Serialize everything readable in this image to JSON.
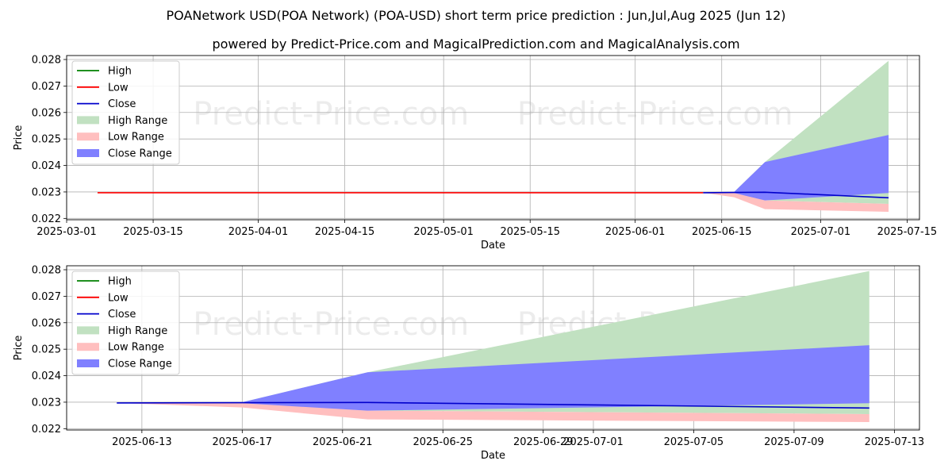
{
  "title": "POANetwork USD(POA Network) (POA-USD) short term price prediction : Jun,Jul,Aug 2025 (Jun 12)",
  "subtitle": "powered by Predict-Price.com and MagicalPrediction.com and MagicalAnalysis.com",
  "watermark": "Predict-Price.com",
  "colors": {
    "high": "#008000",
    "low": "#ff0000",
    "close": "#0000cc",
    "high_range": "#c1e1c1",
    "low_range": "#ffbfbf",
    "close_range": "#8080ff"
  },
  "chart_data": [
    {
      "type": "line",
      "xlabel": "Date",
      "ylabel": "Price",
      "xlim": [
        "2025-03-01",
        "2025-07-17"
      ],
      "ylim": [
        0.02195,
        0.02815
      ],
      "grid": true,
      "legend_position": "top-left",
      "legend": [
        "High",
        "Low",
        "Close",
        "High Range",
        "Low Range",
        "Close Range"
      ],
      "x_ticks": [
        "2025-03-01",
        "2025-03-15",
        "2025-04-01",
        "2025-04-15",
        "2025-05-01",
        "2025-05-15",
        "2025-06-01",
        "2025-06-15",
        "2025-07-01",
        "2025-07-15"
      ],
      "y_ticks": [
        0.022,
        0.023,
        0.024,
        0.025,
        0.026,
        0.027,
        0.028
      ],
      "series": [
        {
          "name": "Low",
          "x": [
            "2025-03-06",
            "2025-06-12"
          ],
          "values": [
            0.02297,
            0.02297
          ]
        },
        {
          "name": "Close",
          "x": [
            "2025-06-12",
            "2025-06-17",
            "2025-06-22",
            "2025-07-12"
          ],
          "values": [
            0.02297,
            0.02298,
            0.02299,
            0.02278
          ]
        }
      ],
      "ranges": [
        {
          "name": "High Range",
          "x": [
            "2025-06-12",
            "2025-06-17",
            "2025-06-22",
            "2025-07-12"
          ],
          "upper": [
            0.02297,
            0.023,
            0.02413,
            0.02795
          ],
          "lower": [
            0.02297,
            0.02298,
            0.02268,
            0.02255
          ]
        },
        {
          "name": "Low Range",
          "x": [
            "2025-06-12",
            "2025-06-17",
            "2025-06-22",
            "2025-07-12"
          ],
          "upper": [
            0.02297,
            0.02298,
            0.02268,
            0.02255
          ],
          "lower": [
            0.02297,
            0.0228,
            0.02235,
            0.02225
          ]
        },
        {
          "name": "Close Range",
          "x": [
            "2025-06-12",
            "2025-06-17",
            "2025-06-22",
            "2025-07-12"
          ],
          "upper": [
            0.02297,
            0.023,
            0.02413,
            0.02515
          ],
          "lower": [
            0.02297,
            0.02296,
            0.02268,
            0.02296
          ]
        }
      ]
    },
    {
      "type": "line",
      "xlabel": "Date",
      "ylabel": "Price",
      "xlim": [
        "2025-06-10",
        "2025-07-14"
      ],
      "ylim": [
        0.02195,
        0.02815
      ],
      "grid": true,
      "legend_position": "top-left",
      "legend": [
        "High",
        "Low",
        "Close",
        "High Range",
        "Low Range",
        "Close Range"
      ],
      "x_ticks": [
        "2025-06-13",
        "2025-06-17",
        "2025-06-21",
        "2025-06-25",
        "2025-06-29",
        "2025-07-01",
        "2025-07-05",
        "2025-07-09",
        "2025-07-13"
      ],
      "y_ticks": [
        0.022,
        0.023,
        0.024,
        0.025,
        0.026,
        0.027,
        0.028
      ],
      "series": [
        {
          "name": "Close",
          "x": [
            "2025-06-12",
            "2025-06-17",
            "2025-06-22",
            "2025-07-12"
          ],
          "values": [
            0.02297,
            0.02298,
            0.02299,
            0.02278
          ]
        }
      ],
      "ranges": [
        {
          "name": "High Range",
          "x": [
            "2025-06-12",
            "2025-06-17",
            "2025-06-22",
            "2025-07-12"
          ],
          "upper": [
            0.02297,
            0.023,
            0.02413,
            0.02795
          ],
          "lower": [
            0.02297,
            0.02298,
            0.02268,
            0.02255
          ]
        },
        {
          "name": "Low Range",
          "x": [
            "2025-06-12",
            "2025-06-17",
            "2025-06-22",
            "2025-07-12"
          ],
          "upper": [
            0.02297,
            0.02298,
            0.02268,
            0.02255
          ],
          "lower": [
            0.02297,
            0.0228,
            0.02235,
            0.02225
          ]
        },
        {
          "name": "Close Range",
          "x": [
            "2025-06-12",
            "2025-06-17",
            "2025-06-22",
            "2025-07-12"
          ],
          "upper": [
            0.02297,
            0.023,
            0.02413,
            0.02515
          ],
          "lower": [
            0.02297,
            0.02296,
            0.02268,
            0.02296
          ]
        }
      ]
    }
  ]
}
